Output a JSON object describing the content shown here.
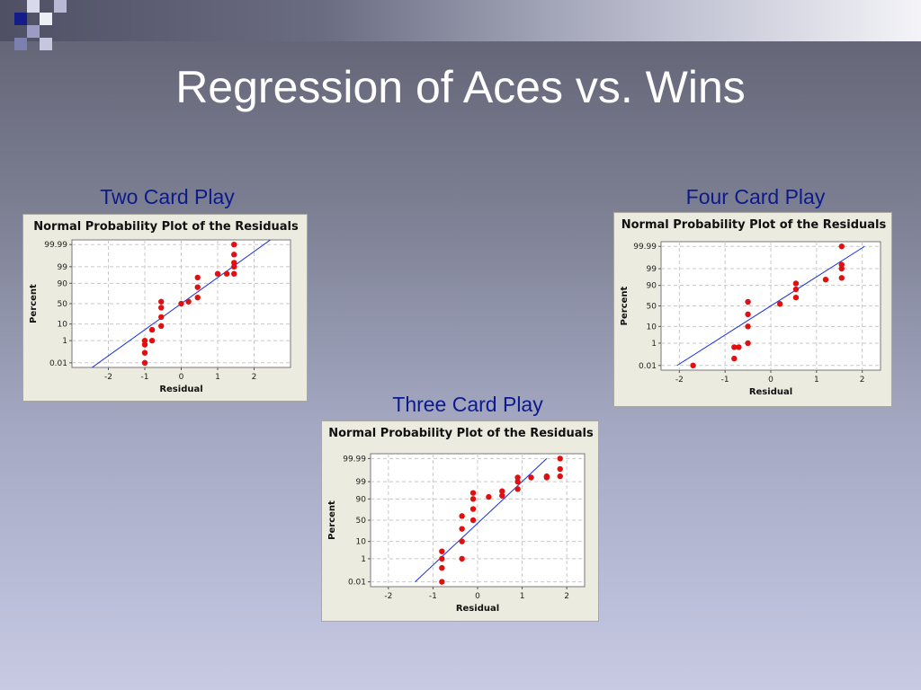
{
  "slide": {
    "title": "Regression of Aces vs. Wins",
    "colors": {
      "text_title": "#ffffff",
      "panel_label": "#0d1a8c",
      "points": "#e01010",
      "fit_line": "#1a2ee0",
      "plot_bg": "#ecebdf"
    }
  },
  "panels": {
    "two": {
      "label": "Two Card Play"
    },
    "three": {
      "label": "Three Card Play"
    },
    "four": {
      "label": "Four Card Play"
    }
  },
  "chart_data": [
    {
      "type": "scatter",
      "title": "Normal Probability Plot of the Residuals",
      "xlabel": "Residual",
      "ylabel": "Percent",
      "xticks": [
        -2,
        -1,
        0,
        1,
        2
      ],
      "yticks": [
        "0.01",
        "1",
        "10",
        "50",
        "90",
        "99",
        "99.99"
      ],
      "xlim": [
        -3,
        3
      ],
      "yscale": "normal-probability",
      "grid": true,
      "fit_line": [
        [
          -2.6,
          0.001
        ],
        [
          2.6,
          99.999
        ]
      ],
      "points": [
        [
          -1.0,
          0.01
        ],
        [
          -1.0,
          0.1
        ],
        [
          -1.0,
          0.5
        ],
        [
          -1.0,
          1
        ],
        [
          -0.8,
          1
        ],
        [
          -0.8,
          5
        ],
        [
          -0.55,
          8
        ],
        [
          -0.55,
          20
        ],
        [
          -0.55,
          40
        ],
        [
          -0.55,
          55
        ],
        [
          0.0,
          50
        ],
        [
          0.2,
          55
        ],
        [
          0.45,
          65
        ],
        [
          0.45,
          85
        ],
        [
          0.45,
          95
        ],
        [
          1.0,
          97
        ],
        [
          1.25,
          97
        ],
        [
          1.45,
          97
        ],
        [
          1.45,
          99
        ],
        [
          1.45,
          99.5
        ],
        [
          1.45,
          99.9
        ],
        [
          1.45,
          99.99
        ]
      ]
    },
    {
      "type": "scatter",
      "title": "Normal Probability Plot of the Residuals",
      "xlabel": "Residual",
      "ylabel": "Percent",
      "xticks": [
        -2,
        -1,
        0,
        1,
        2
      ],
      "yticks": [
        "0.01",
        "1",
        "10",
        "50",
        "90",
        "99",
        "99.99"
      ],
      "xlim": [
        -2.4,
        2.4
      ],
      "yscale": "normal-probability",
      "grid": true,
      "fit_line": [
        [
          -1.4,
          0.01
        ],
        [
          1.55,
          99.99
        ]
      ],
      "points": [
        [
          -0.8,
          0.01
        ],
        [
          -0.8,
          0.2
        ],
        [
          -0.8,
          1
        ],
        [
          -0.8,
          3
        ],
        [
          -0.35,
          1
        ],
        [
          -0.35,
          10
        ],
        [
          -0.35,
          30
        ],
        [
          -0.35,
          60
        ],
        [
          -0.1,
          50
        ],
        [
          -0.1,
          75
        ],
        [
          -0.1,
          90
        ],
        [
          -0.1,
          95
        ],
        [
          0.25,
          92
        ],
        [
          0.55,
          93
        ],
        [
          0.55,
          96
        ],
        [
          0.9,
          97
        ],
        [
          0.9,
          99
        ],
        [
          0.9,
          99.5
        ],
        [
          1.2,
          99.5
        ],
        [
          1.55,
          99.5
        ],
        [
          1.55,
          99.6
        ],
        [
          1.85,
          99.6
        ],
        [
          1.85,
          99.9
        ],
        [
          1.85,
          99.99
        ]
      ]
    },
    {
      "type": "scatter",
      "title": "Normal Probability Plot of the Residuals",
      "xlabel": "Residual",
      "ylabel": "Percent",
      "xticks": [
        -2,
        -1,
        0,
        1,
        2
      ],
      "yticks": [
        "0.01",
        "1",
        "10",
        "50",
        "90",
        "99",
        "99.99"
      ],
      "xlim": [
        -2.4,
        2.4
      ],
      "yscale": "normal-probability",
      "grid": true,
      "fit_line": [
        [
          -2.05,
          0.01
        ],
        [
          2.05,
          99.99
        ]
      ],
      "points": [
        [
          -1.7,
          0.01
        ],
        [
          -0.8,
          0.05
        ],
        [
          -0.8,
          0.5
        ],
        [
          -0.7,
          0.5
        ],
        [
          -0.5,
          1
        ],
        [
          -0.5,
          10
        ],
        [
          -0.5,
          30
        ],
        [
          -0.5,
          60
        ],
        [
          0.2,
          55
        ],
        [
          0.55,
          70
        ],
        [
          0.55,
          85
        ],
        [
          0.55,
          92
        ],
        [
          1.2,
          95
        ],
        [
          1.55,
          96
        ],
        [
          1.55,
          99
        ],
        [
          1.55,
          99.5
        ],
        [
          1.55,
          99.99
        ]
      ]
    }
  ]
}
